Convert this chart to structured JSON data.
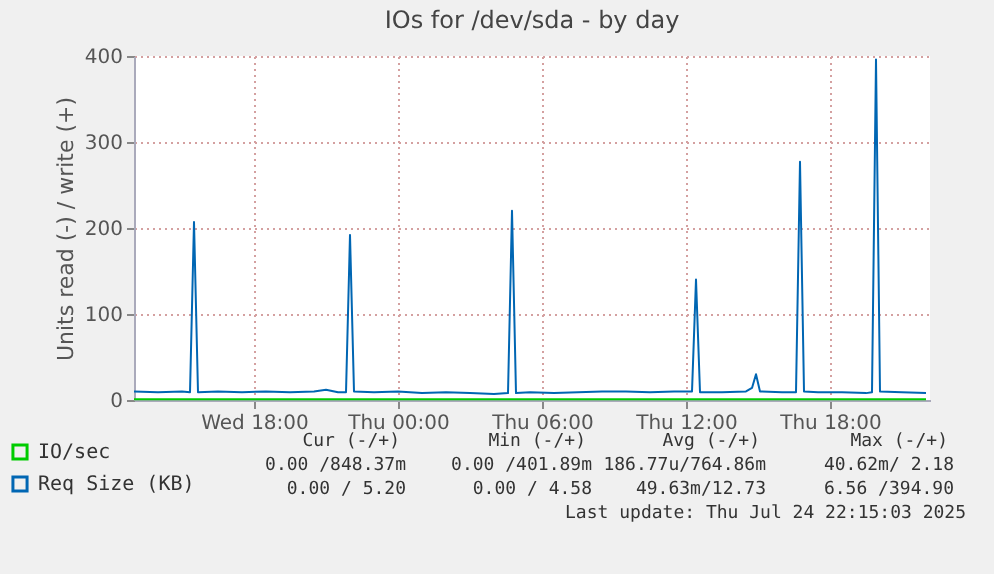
{
  "chart_data": {
    "type": "line",
    "title": "IOs for /dev/sda - by day",
    "ylabel": "Units read (-) / write (+)",
    "xlim": [
      "2025-07-23T13:00",
      "2025-07-24T22:10"
    ],
    "xticks": [
      {
        "value": "2025-07-23T18:00",
        "label": "Wed 18:00"
      },
      {
        "value": "2025-07-24T00:00",
        "label": "Thu 00:00"
      },
      {
        "value": "2025-07-24T06:00",
        "label": "Thu 06:00"
      },
      {
        "value": "2025-07-24T12:00",
        "label": "Thu 12:00"
      },
      {
        "value": "2025-07-24T18:00",
        "label": "Thu 18:00"
      }
    ],
    "ylim": [
      0,
      400
    ],
    "yticks": [
      0,
      100,
      200,
      300,
      400
    ],
    "grid": true,
    "legend": "bottom left",
    "marker": "none",
    "line_style": "solid",
    "series": [
      {
        "name": "IO/sec",
        "color": "#00cc00",
        "x": [
          "2025-07-23T13:00",
          "2025-07-23T16:00",
          "2025-07-23T19:00",
          "2025-07-23T22:00",
          "2025-07-24T01:00",
          "2025-07-24T04:00",
          "2025-07-24T07:00",
          "2025-07-24T10:00",
          "2025-07-24T13:00",
          "2025-07-24T16:00",
          "2025-07-24T19:00",
          "2025-07-24T22:00"
        ],
        "values": [
          1,
          1,
          1,
          1,
          1,
          1,
          1,
          1,
          1,
          1,
          1,
          1
        ]
      },
      {
        "name": "Req Size (KB)",
        "color": "#0066b3",
        "x": [
          "2025-07-23T13:00",
          "2025-07-23T14:00",
          "2025-07-23T15:00",
          "2025-07-23T15:20",
          "2025-07-23T15:30",
          "2025-07-23T15:40",
          "2025-07-23T16:30",
          "2025-07-23T17:30",
          "2025-07-23T18:30",
          "2025-07-23T19:30",
          "2025-07-23T20:30",
          "2025-07-23T21:00",
          "2025-07-23T21:30",
          "2025-07-23T21:50",
          "2025-07-23T22:00",
          "2025-07-23T22:10",
          "2025-07-23T23:00",
          "2025-07-24T00:00",
          "2025-07-24T01:00",
          "2025-07-24T02:00",
          "2025-07-24T03:00",
          "2025-07-24T04:00",
          "2025-07-24T04:35",
          "2025-07-24T04:45",
          "2025-07-24T04:55",
          "2025-07-24T05:30",
          "2025-07-24T06:30",
          "2025-07-24T07:30",
          "2025-07-24T08:30",
          "2025-07-24T09:30",
          "2025-07-24T10:30",
          "2025-07-24T11:30",
          "2025-07-24T12:15",
          "2025-07-24T12:25",
          "2025-07-24T12:35",
          "2025-07-24T13:30",
          "2025-07-24T14:30",
          "2025-07-24T14:45",
          "2025-07-24T14:55",
          "2025-07-24T15:05",
          "2025-07-24T16:00",
          "2025-07-24T16:35",
          "2025-07-24T16:45",
          "2025-07-24T16:55",
          "2025-07-24T17:30",
          "2025-07-24T18:30",
          "2025-07-24T19:30",
          "2025-07-24T19:45",
          "2025-07-24T19:55",
          "2025-07-24T20:05",
          "2025-07-24T21:00",
          "2025-07-24T22:00"
        ],
        "values": [
          10,
          9,
          10,
          9,
          207,
          9,
          10,
          9,
          10,
          9,
          10,
          12,
          9,
          9,
          192,
          10,
          9,
          10,
          8,
          9,
          8,
          7,
          8,
          220,
          8,
          9,
          8,
          9,
          10,
          10,
          9,
          10,
          10,
          140,
          9,
          9,
          10,
          14,
          30,
          10,
          9,
          9,
          277,
          10,
          9,
          9,
          8,
          9,
          396,
          10,
          9,
          8
        ]
      }
    ],
    "annotations": [
      "Cur (-/+)",
      "Min (-/+)",
      "Avg (-/+)",
      "Max (-/+)",
      "0.00 /848.37m",
      "0.00 /401.89m",
      "186.77u/764.86m",
      "40.62m/ 2.18",
      "0.00 / 5.20",
      "0.00 / 4.58",
      "49.63m/12.73",
      "6.56 /394.90",
      "Last update: Thu Jul 24 22:15:03 2025"
    ]
  }
}
